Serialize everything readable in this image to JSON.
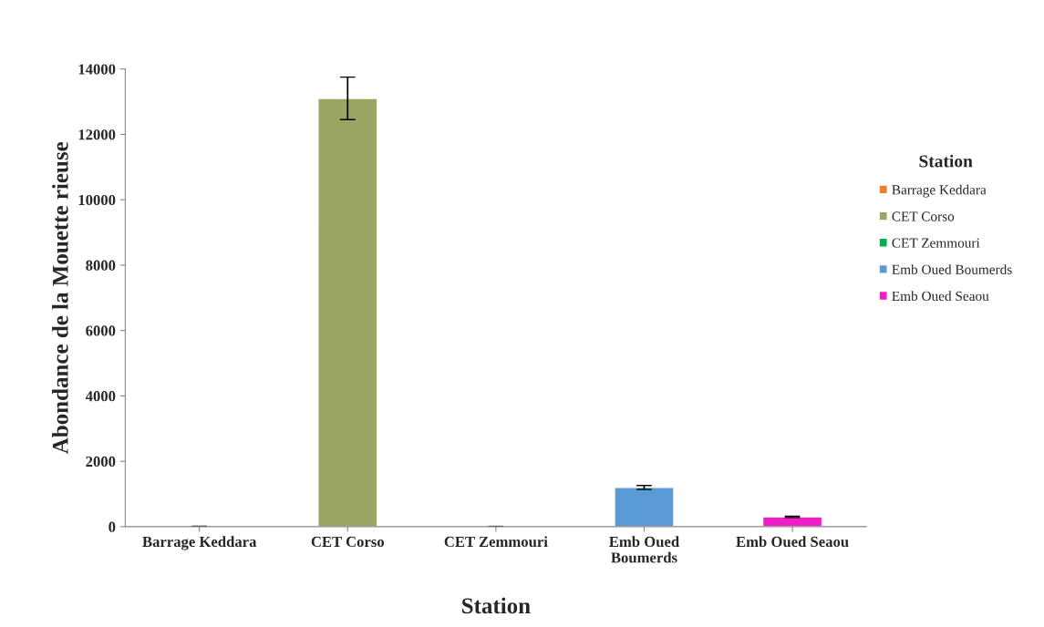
{
  "chart_data": {
    "type": "bar",
    "xlabel": "Station",
    "ylabel": "Abondance de la Mouette rieuse",
    "legend_title": "Station",
    "categories": [
      "Barrage Keddara",
      "CET Corso",
      "CET Zemmouri",
      "Emb Oued\nBoumerds",
      "Emb Oued Seaou"
    ],
    "series": [
      {
        "name": "Barrage Keddara",
        "color": "#ed7d31",
        "values": [
          5,
          null,
          null,
          null,
          null
        ],
        "errors": [
          5,
          null,
          null,
          null,
          null
        ]
      },
      {
        "name": "CET Corso",
        "color": "#9ba563",
        "values": [
          null,
          13100,
          null,
          null,
          null
        ],
        "errors": [
          null,
          650,
          null,
          null,
          null
        ]
      },
      {
        "name": "CET Zemmouri",
        "color": "#00b050",
        "values": [
          null,
          null,
          5,
          null,
          null
        ],
        "errors": [
          null,
          null,
          5,
          null,
          null
        ]
      },
      {
        "name": "Emb Oued Boumerds",
        "color": "#5b9bd5",
        "values": [
          null,
          null,
          null,
          1200,
          null
        ],
        "errors": [
          null,
          null,
          null,
          60,
          null
        ]
      },
      {
        "name": "Emb Oued Seaou",
        "color": "#f01ec8",
        "values": [
          null,
          null,
          null,
          null,
          300
        ],
        "errors": [
          null,
          null,
          null,
          null,
          20
        ]
      }
    ],
    "ylim": [
      0,
      14000
    ],
    "yticks": [
      0,
      2000,
      4000,
      6000,
      8000,
      10000,
      12000,
      14000
    ],
    "grid": false,
    "legend": "right"
  }
}
